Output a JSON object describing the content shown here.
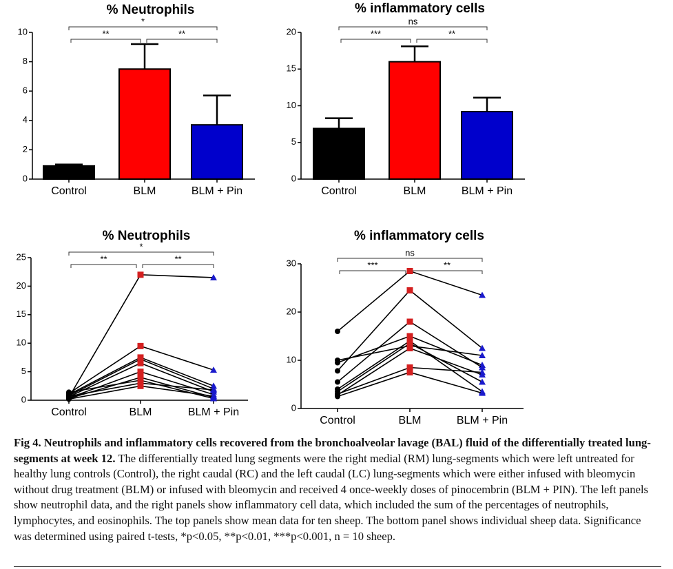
{
  "chart_data": [
    {
      "type": "bar",
      "title": "% Neutrophils",
      "categories": [
        "Control",
        "BLM",
        "BLM + Pin"
      ],
      "values": [
        0.9,
        7.5,
        3.7
      ],
      "errors": [
        0.1,
        1.7,
        2.0
      ],
      "colors": [
        "#000000",
        "#ff0000",
        "#0000cc"
      ],
      "ylim": [
        0,
        10
      ],
      "yticks": [
        0,
        2,
        4,
        6,
        8,
        10
      ],
      "annotations": [
        "**",
        "*",
        "**"
      ]
    },
    {
      "type": "bar",
      "title": "% inflammatory cells",
      "categories": [
        "Control",
        "BLM",
        "BLM + Pin"
      ],
      "values": [
        6.9,
        16.0,
        9.2
      ],
      "errors": [
        1.4,
        2.1,
        1.9
      ],
      "colors": [
        "#000000",
        "#ff0000",
        "#0000cc"
      ],
      "ylim": [
        0,
        20
      ],
      "yticks": [
        0,
        5,
        10,
        15,
        20
      ],
      "annotations": [
        "***",
        "ns",
        "**"
      ]
    },
    {
      "type": "line",
      "title": "% Neutrophils",
      "categories": [
        "Control",
        "BLM",
        "BLM + Pin"
      ],
      "line_color": "#000000",
      "marker_colors": [
        "#000000",
        "#d42020",
        "#1a1acc"
      ],
      "ylim": [
        0,
        25
      ],
      "yticks": [
        0,
        5,
        10,
        15,
        20,
        25
      ],
      "annotations": [
        "**",
        "*",
        "**"
      ],
      "series": [
        {
          "values": [
            0.5,
            22,
            21.5
          ]
        },
        {
          "values": [
            1.2,
            9.5,
            5.3
          ]
        },
        {
          "values": [
            1.0,
            7.5,
            2.5
          ]
        },
        {
          "values": [
            0.8,
            7.2,
            2.0
          ]
        },
        {
          "values": [
            0.6,
            6.5,
            1.5
          ]
        },
        {
          "values": [
            0.4,
            5.0,
            1.0
          ]
        },
        {
          "values": [
            0.3,
            4.0,
            0.5
          ]
        },
        {
          "values": [
            1.4,
            3.5,
            0.3
          ]
        },
        {
          "values": [
            0.7,
            3.0,
            1.8
          ]
        },
        {
          "values": [
            0.2,
            2.5,
            0.7
          ]
        }
      ]
    },
    {
      "type": "line",
      "title": "% inflammatory cells",
      "categories": [
        "Control",
        "BLM",
        "BLM + Pin"
      ],
      "line_color": "#000000",
      "marker_colors": [
        "#000000",
        "#d42020",
        "#1a1acc"
      ],
      "ylim": [
        0,
        30
      ],
      "yticks": [
        0,
        10,
        20,
        30
      ],
      "annotations": [
        "***",
        "ns",
        "**"
      ],
      "series": [
        {
          "values": [
            16,
            28.5,
            23.5
          ]
        },
        {
          "values": [
            10,
            13,
            11
          ]
        },
        {
          "values": [
            9.5,
            15,
            9
          ]
        },
        {
          "values": [
            7.8,
            24.5,
            12.5
          ]
        },
        {
          "values": [
            5.5,
            18,
            8.5
          ]
        },
        {
          "values": [
            4,
            14,
            3.5
          ]
        },
        {
          "values": [
            3.5,
            13.5,
            5.5
          ]
        },
        {
          "values": [
            3,
            8.5,
            7.5
          ]
        },
        {
          "values": [
            2.8,
            12.5,
            7
          ]
        },
        {
          "values": [
            2.5,
            7.5,
            3.2
          ]
        }
      ]
    }
  ],
  "caption": {
    "heading": "Fig 4. Neutrophils and inflammatory cells recovered from the bronchoalveolar lavage (BAL) fluid of the differentially treated lung-segments at week 12.",
    "body": "The differentially treated lung segments were the right medial (RM) lung-segments which were left untreated for healthy lung controls (Control), the right caudal (RC) and the left caudal (LC) lung-segments which were either infused with bleomycin without drug treatment (BLM) or infused with bleomycin and received 4 once-weekly doses of pinocembrin (BLM + PIN). The left panels show neutrophil data, and the right panels show inflammatory cell data, which included the sum of the percentages of neutrophils, lymphocytes, and eosinophils. The top panels show mean data for ten sheep. The bottom panel shows individual sheep data. Significance was determined using paired t-tests, *p<0.05, **p<0.01, ***p<0.001, n = 10 sheep."
  }
}
